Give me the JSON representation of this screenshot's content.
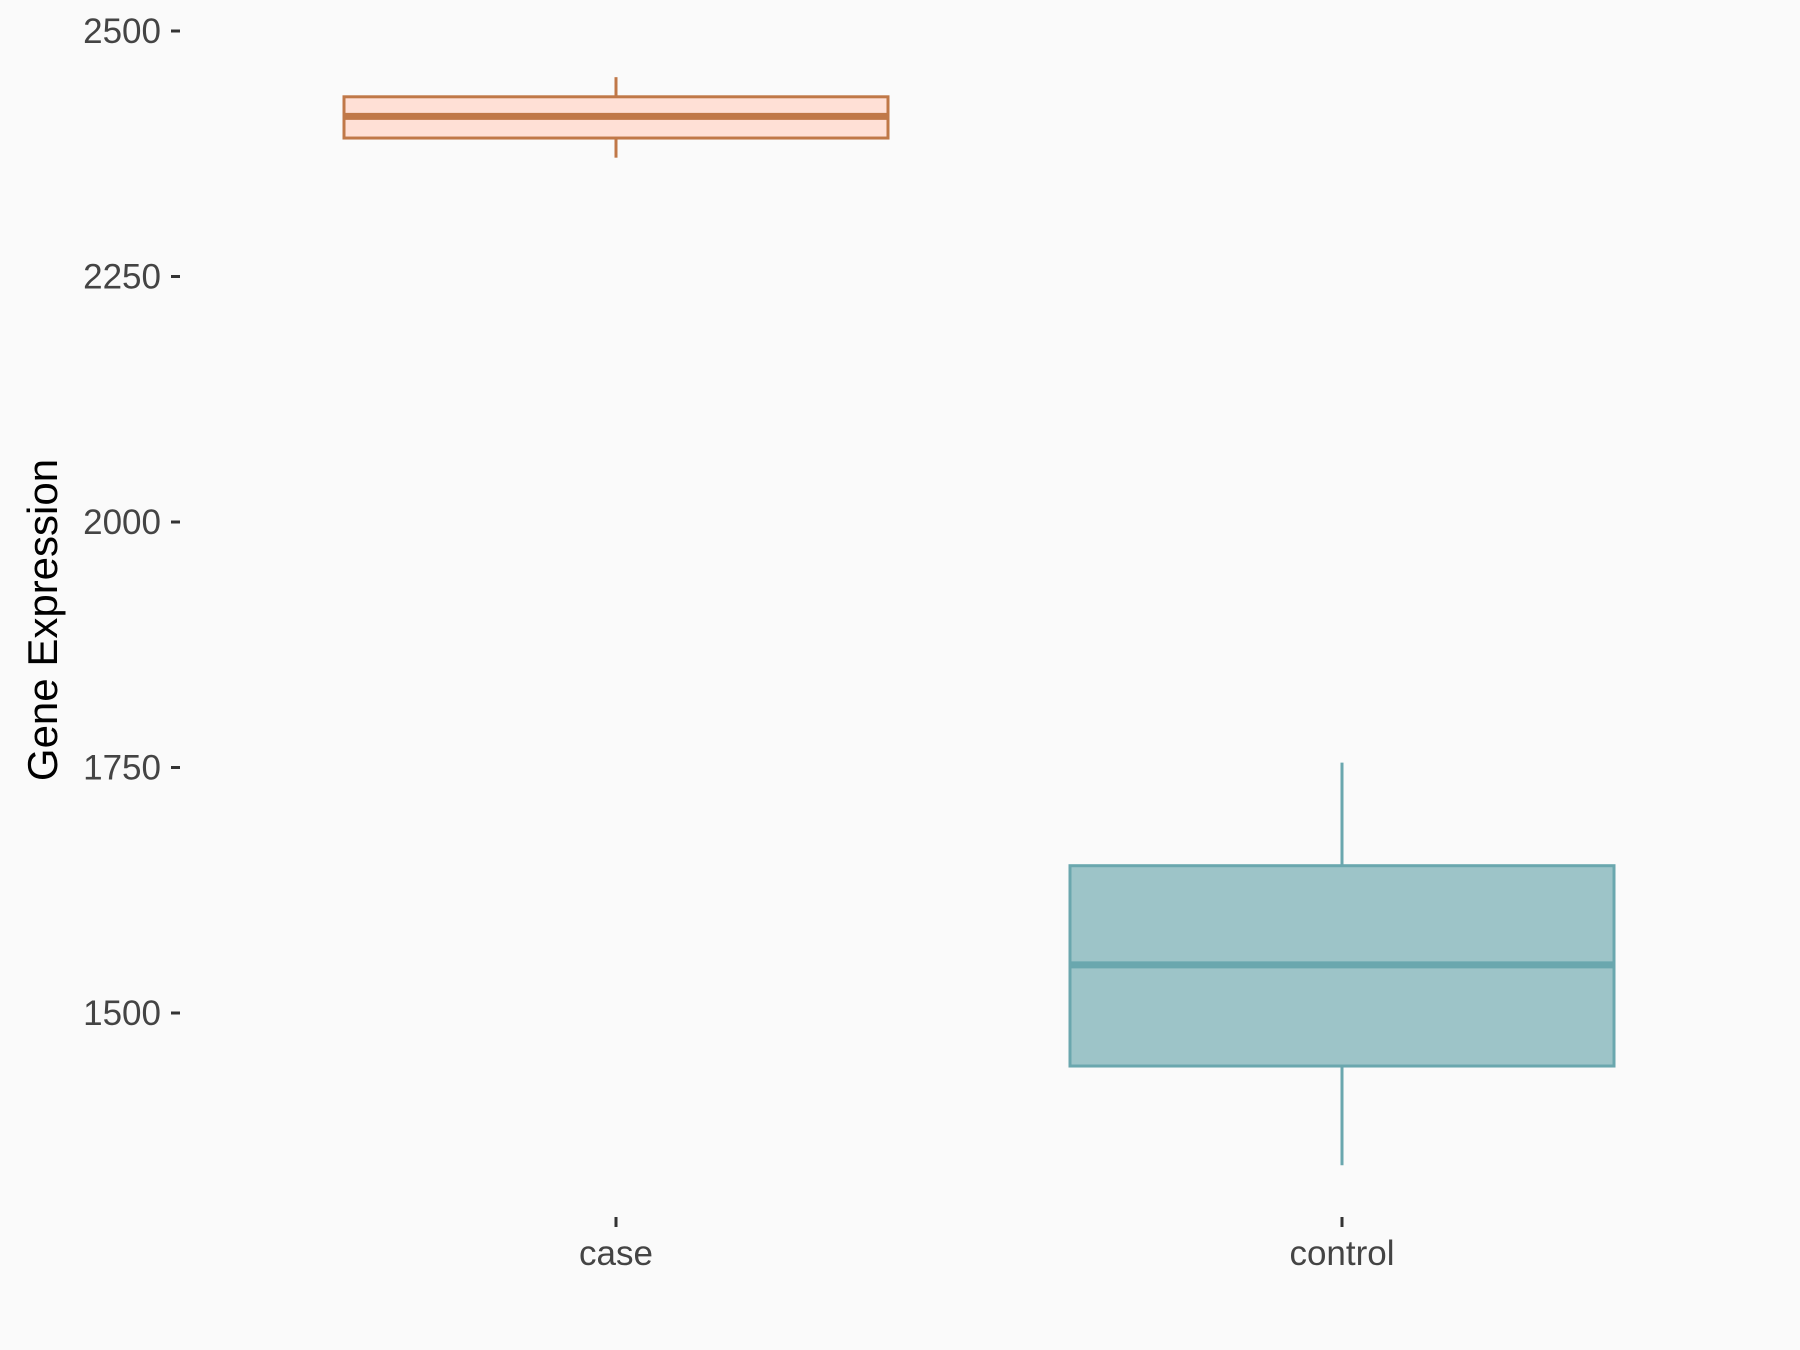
{
  "chart_data": {
    "type": "boxplot",
    "title": "",
    "xlabel": "",
    "ylabel": "Gene Expression",
    "ylim": [
      1305,
      2510
    ],
    "yticks": [
      1500,
      1750,
      2000,
      2250,
      2500
    ],
    "ytick_labels": [
      "1500",
      "1750",
      "2000",
      "2250",
      "2500"
    ],
    "categories": [
      "case",
      "control"
    ],
    "grid": false,
    "legend": "none",
    "boxes": [
      {
        "category": "case",
        "whisker_low": 2371,
        "q1": 2391,
        "median": 2413,
        "q3": 2433,
        "whisker_high": 2453,
        "fill": "#FFE0D6",
        "stroke": "#C07848"
      },
      {
        "category": "control",
        "whisker_low": 1345,
        "q1": 1446,
        "median": 1549,
        "q3": 1650,
        "whisker_high": 1755,
        "fill": "#9DC4C8",
        "stroke": "#6AA7AE"
      }
    ],
    "background": "#FAFAFA"
  }
}
